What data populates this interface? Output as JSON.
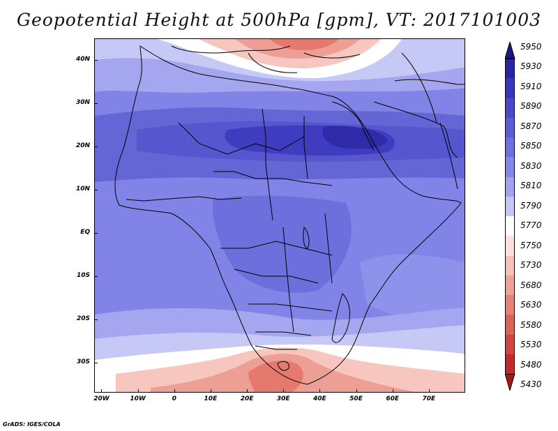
{
  "title": "Geopotential Height at 500hPa [gpm], VT: 2017101003",
  "credit": "GrADS: IGES/COLA",
  "map": {
    "lat_labels": [
      "40N",
      "30N",
      "20N",
      "10N",
      "EQ",
      "10S",
      "20S",
      "30S"
    ],
    "lat_values": [
      40,
      30,
      20,
      10,
      0,
      -10,
      -20,
      -30
    ],
    "lon_labels": [
      "20W",
      "10W",
      "0",
      "10E",
      "20E",
      "30E",
      "40E",
      "50E",
      "60E",
      "70E"
    ],
    "lon_values": [
      -20,
      -10,
      0,
      10,
      20,
      30,
      40,
      50,
      60,
      70
    ],
    "lon_range": [
      -22,
      80
    ],
    "lat_range": [
      -37,
      45
    ]
  },
  "colorbar": {
    "labels": [
      "5950",
      "5930",
      "5910",
      "5890",
      "5870",
      "5850",
      "5830",
      "5810",
      "5790",
      "5770",
      "5750",
      "5730",
      "5680",
      "5630",
      "5580",
      "5530",
      "5480",
      "5430"
    ],
    "colors": [
      "#1f1488",
      "#2b24a6",
      "#3a35bd",
      "#4b48cc",
      "#5d5cd8",
      "#6f70e0",
      "#8587e8",
      "#a1a3ef",
      "#c4c6f6",
      "#ffffff",
      "#fbe0dc",
      "#f6c1b9",
      "#f0a095",
      "#e88075",
      "#df6258",
      "#d44440",
      "#c42a2a",
      "#a81818"
    ]
  }
}
